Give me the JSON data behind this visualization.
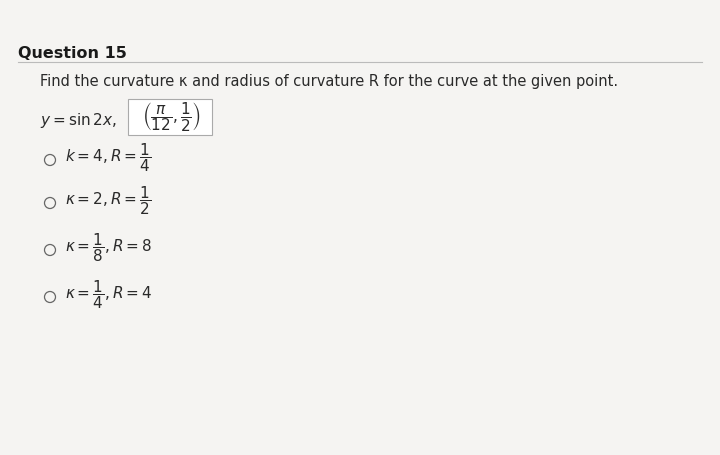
{
  "title": "Question 15",
  "instruction": "Find the curvature κ and radius of curvature R for the curve at the given point.",
  "bg_color": "#f5f4f2",
  "title_color": "#1a1a1a",
  "text_color": "#2a2a2a",
  "title_fontsize": 11.5,
  "instruction_fontsize": 10.5,
  "option_fontsize": 11,
  "curve_fontsize": 11
}
